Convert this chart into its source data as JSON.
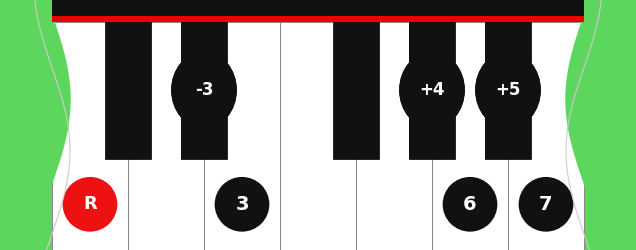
{
  "bg_color": "#5cd65c",
  "white_key_color": "#ffffff",
  "black_key_color": "#111111",
  "red_bar_color": "#ee0000",
  "border_color": "#888888",
  "n_white_keys": 7,
  "white_labels": [
    {
      "index": 0,
      "text": "R",
      "color": "#ee1111"
    },
    {
      "index": 2,
      "text": "3",
      "color": "#111111"
    },
    {
      "index": 5,
      "text": "6",
      "color": "#111111"
    },
    {
      "index": 6,
      "text": "7",
      "color": "#111111"
    }
  ],
  "black_positions": [
    0,
    1,
    3,
    4,
    5
  ],
  "black_labels": [
    {
      "black_index": 1,
      "text": "-3"
    },
    {
      "black_index": 3,
      "text": "+4"
    },
    {
      "black_index": 4,
      "text": "+5"
    }
  ],
  "figsize": [
    6.36,
    2.5
  ],
  "dpi": 100
}
